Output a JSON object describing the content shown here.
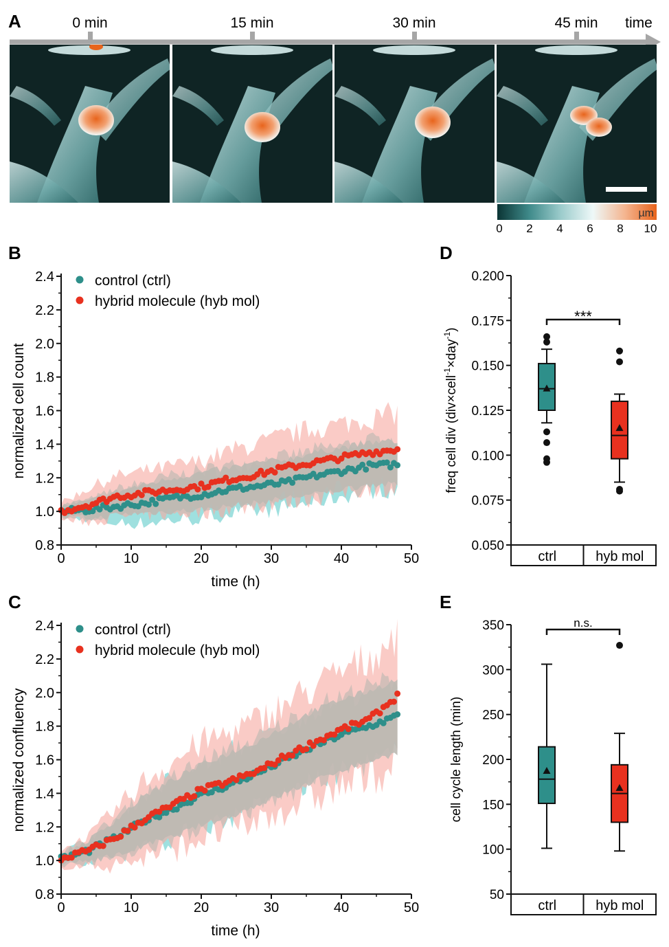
{
  "panel_labels": [
    "A",
    "B",
    "C",
    "D",
    "E"
  ],
  "panel_a": {
    "timeline": {
      "ticks": [
        "0 min",
        "15 min",
        "30 min",
        "45 min"
      ],
      "end_label": "time"
    },
    "colorbar": {
      "unit": "µm",
      "ticks": [
        "0",
        "2",
        "4",
        "6",
        "8",
        "10"
      ],
      "stops": [
        "#0b3535",
        "#3f8a8a",
        "#9ccccc",
        "#eef8f8",
        "#f4b590",
        "#e8641c"
      ]
    }
  },
  "colors": {
    "ctrl": "#2e8f8a",
    "hyb": "#e8311f",
    "ctrl_band": "#7fd6d4",
    "hyb_band": "#f6a8a0",
    "overlap_band": "#bdb9b2"
  },
  "chart_data": [
    {
      "id": "B",
      "type": "scatter",
      "xlabel": "time (h)",
      "ylabel": "normalized cell count",
      "xlim": [
        0,
        50
      ],
      "ylim": [
        0.8,
        2.4
      ],
      "xticks": [
        0,
        10,
        20,
        30,
        40,
        50
      ],
      "yticks": [
        0.8,
        1.0,
        1.2,
        1.4,
        1.6,
        1.8,
        2.0,
        2.2,
        2.4
      ],
      "legend": [
        "control (ctrl)",
        "hybrid molecule (hyb mol)"
      ],
      "legend_position": "top-left",
      "series": [
        {
          "name": "control (ctrl)",
          "x": [
            0,
            4,
            8,
            12,
            16,
            20,
            24,
            28,
            32,
            36,
            40,
            44,
            48
          ],
          "y": [
            1.0,
            1.01,
            1.03,
            1.05,
            1.08,
            1.1,
            1.13,
            1.15,
            1.17,
            1.21,
            1.24,
            1.27,
            1.28
          ],
          "band": [
            0.04,
            0.06,
            0.1,
            0.12,
            0.13,
            0.14,
            0.14,
            0.15,
            0.15,
            0.15,
            0.15,
            0.15,
            0.15
          ]
        },
        {
          "name": "hybrid molecule (hyb mol)",
          "x": [
            0,
            4,
            8,
            12,
            16,
            20,
            24,
            28,
            32,
            36,
            40,
            44,
            48
          ],
          "y": [
            1.0,
            1.04,
            1.09,
            1.11,
            1.13,
            1.15,
            1.19,
            1.22,
            1.26,
            1.29,
            1.32,
            1.35,
            1.37
          ],
          "band": [
            0.05,
            0.1,
            0.12,
            0.13,
            0.14,
            0.15,
            0.17,
            0.18,
            0.19,
            0.2,
            0.2,
            0.2,
            0.22
          ]
        }
      ]
    },
    {
      "id": "C",
      "type": "scatter",
      "xlabel": "time (h)",
      "ylabel": "normalized confluency",
      "xlim": [
        0,
        50
      ],
      "ylim": [
        0.8,
        2.4
      ],
      "xticks": [
        0,
        10,
        20,
        30,
        40,
        50
      ],
      "yticks": [
        0.8,
        1.0,
        1.2,
        1.4,
        1.6,
        1.8,
        2.0,
        2.2,
        2.4
      ],
      "legend": [
        "control (ctrl)",
        "hybrid molecule (hyb mol)"
      ],
      "legend_position": "top-left",
      "series": [
        {
          "name": "control (ctrl)",
          "x": [
            0,
            4,
            8,
            12,
            16,
            20,
            24,
            28,
            32,
            36,
            40,
            44,
            48
          ],
          "y": [
            1.01,
            1.06,
            1.14,
            1.24,
            1.31,
            1.39,
            1.45,
            1.52,
            1.6,
            1.68,
            1.75,
            1.8,
            1.86
          ],
          "band": [
            0.04,
            0.07,
            0.12,
            0.16,
            0.18,
            0.19,
            0.2,
            0.2,
            0.21,
            0.22,
            0.22,
            0.22,
            0.23
          ]
        },
        {
          "name": "hybrid molecule (hyb mol)",
          "x": [
            0,
            4,
            8,
            12,
            16,
            20,
            24,
            28,
            32,
            36,
            40,
            44,
            48
          ],
          "y": [
            1.01,
            1.06,
            1.14,
            1.25,
            1.33,
            1.42,
            1.47,
            1.53,
            1.62,
            1.7,
            1.78,
            1.84,
            1.98
          ],
          "band": [
            0.05,
            0.09,
            0.17,
            0.23,
            0.26,
            0.28,
            0.29,
            0.3,
            0.31,
            0.33,
            0.34,
            0.36,
            0.38
          ]
        }
      ]
    },
    {
      "id": "D",
      "type": "box",
      "ylabel": "freq cell div (div×cell",
      "ylabel_sup1": "-1",
      "ylabel_mid": "×day",
      "ylabel_sup2": "-1",
      "ylabel_end": ")",
      "ylim": [
        0.05,
        0.2
      ],
      "yticks": [
        0.05,
        0.075,
        0.1,
        0.125,
        0.15,
        0.175,
        0.2
      ],
      "ytick_labels": [
        "0.050",
        "0.075",
        "0.100",
        "0.125",
        "0.150",
        "0.175",
        "0.200"
      ],
      "categories": [
        "ctrl",
        "hyb mol"
      ],
      "boxes": [
        {
          "name": "ctrl",
          "q1": 0.125,
          "median": 0.137,
          "q3": 0.151,
          "mean": 0.137,
          "whisker_low": 0.118,
          "whisker_high": 0.159,
          "outliers": [
            0.166,
            0.163,
            0.113,
            0.107,
            0.098,
            0.096
          ]
        },
        {
          "name": "hyb mol",
          "q1": 0.098,
          "median": 0.111,
          "q3": 0.13,
          "mean": 0.115,
          "whisker_low": 0.085,
          "whisker_high": 0.134,
          "outliers": [
            0.158,
            0.152,
            0.081,
            0.08
          ]
        }
      ],
      "significance": "***"
    },
    {
      "id": "E",
      "type": "box",
      "ylabel": "cell cycle length (min)",
      "ylim": [
        50,
        350
      ],
      "yticks": [
        50,
        100,
        150,
        200,
        250,
        300,
        350
      ],
      "ytick_labels": [
        "50",
        "100",
        "150",
        "200",
        "250",
        "300",
        "350"
      ],
      "categories": [
        "ctrl",
        "hyb mol"
      ],
      "boxes": [
        {
          "name": "ctrl",
          "q1": 151,
          "median": 178,
          "q3": 214,
          "mean": 187,
          "whisker_low": 101,
          "whisker_high": 306,
          "outliers": []
        },
        {
          "name": "hyb mol",
          "q1": 130,
          "median": 162,
          "q3": 194,
          "mean": 168,
          "whisker_low": 98,
          "whisker_high": 229,
          "outliers": [
            327
          ]
        }
      ],
      "significance": "n.s."
    }
  ]
}
